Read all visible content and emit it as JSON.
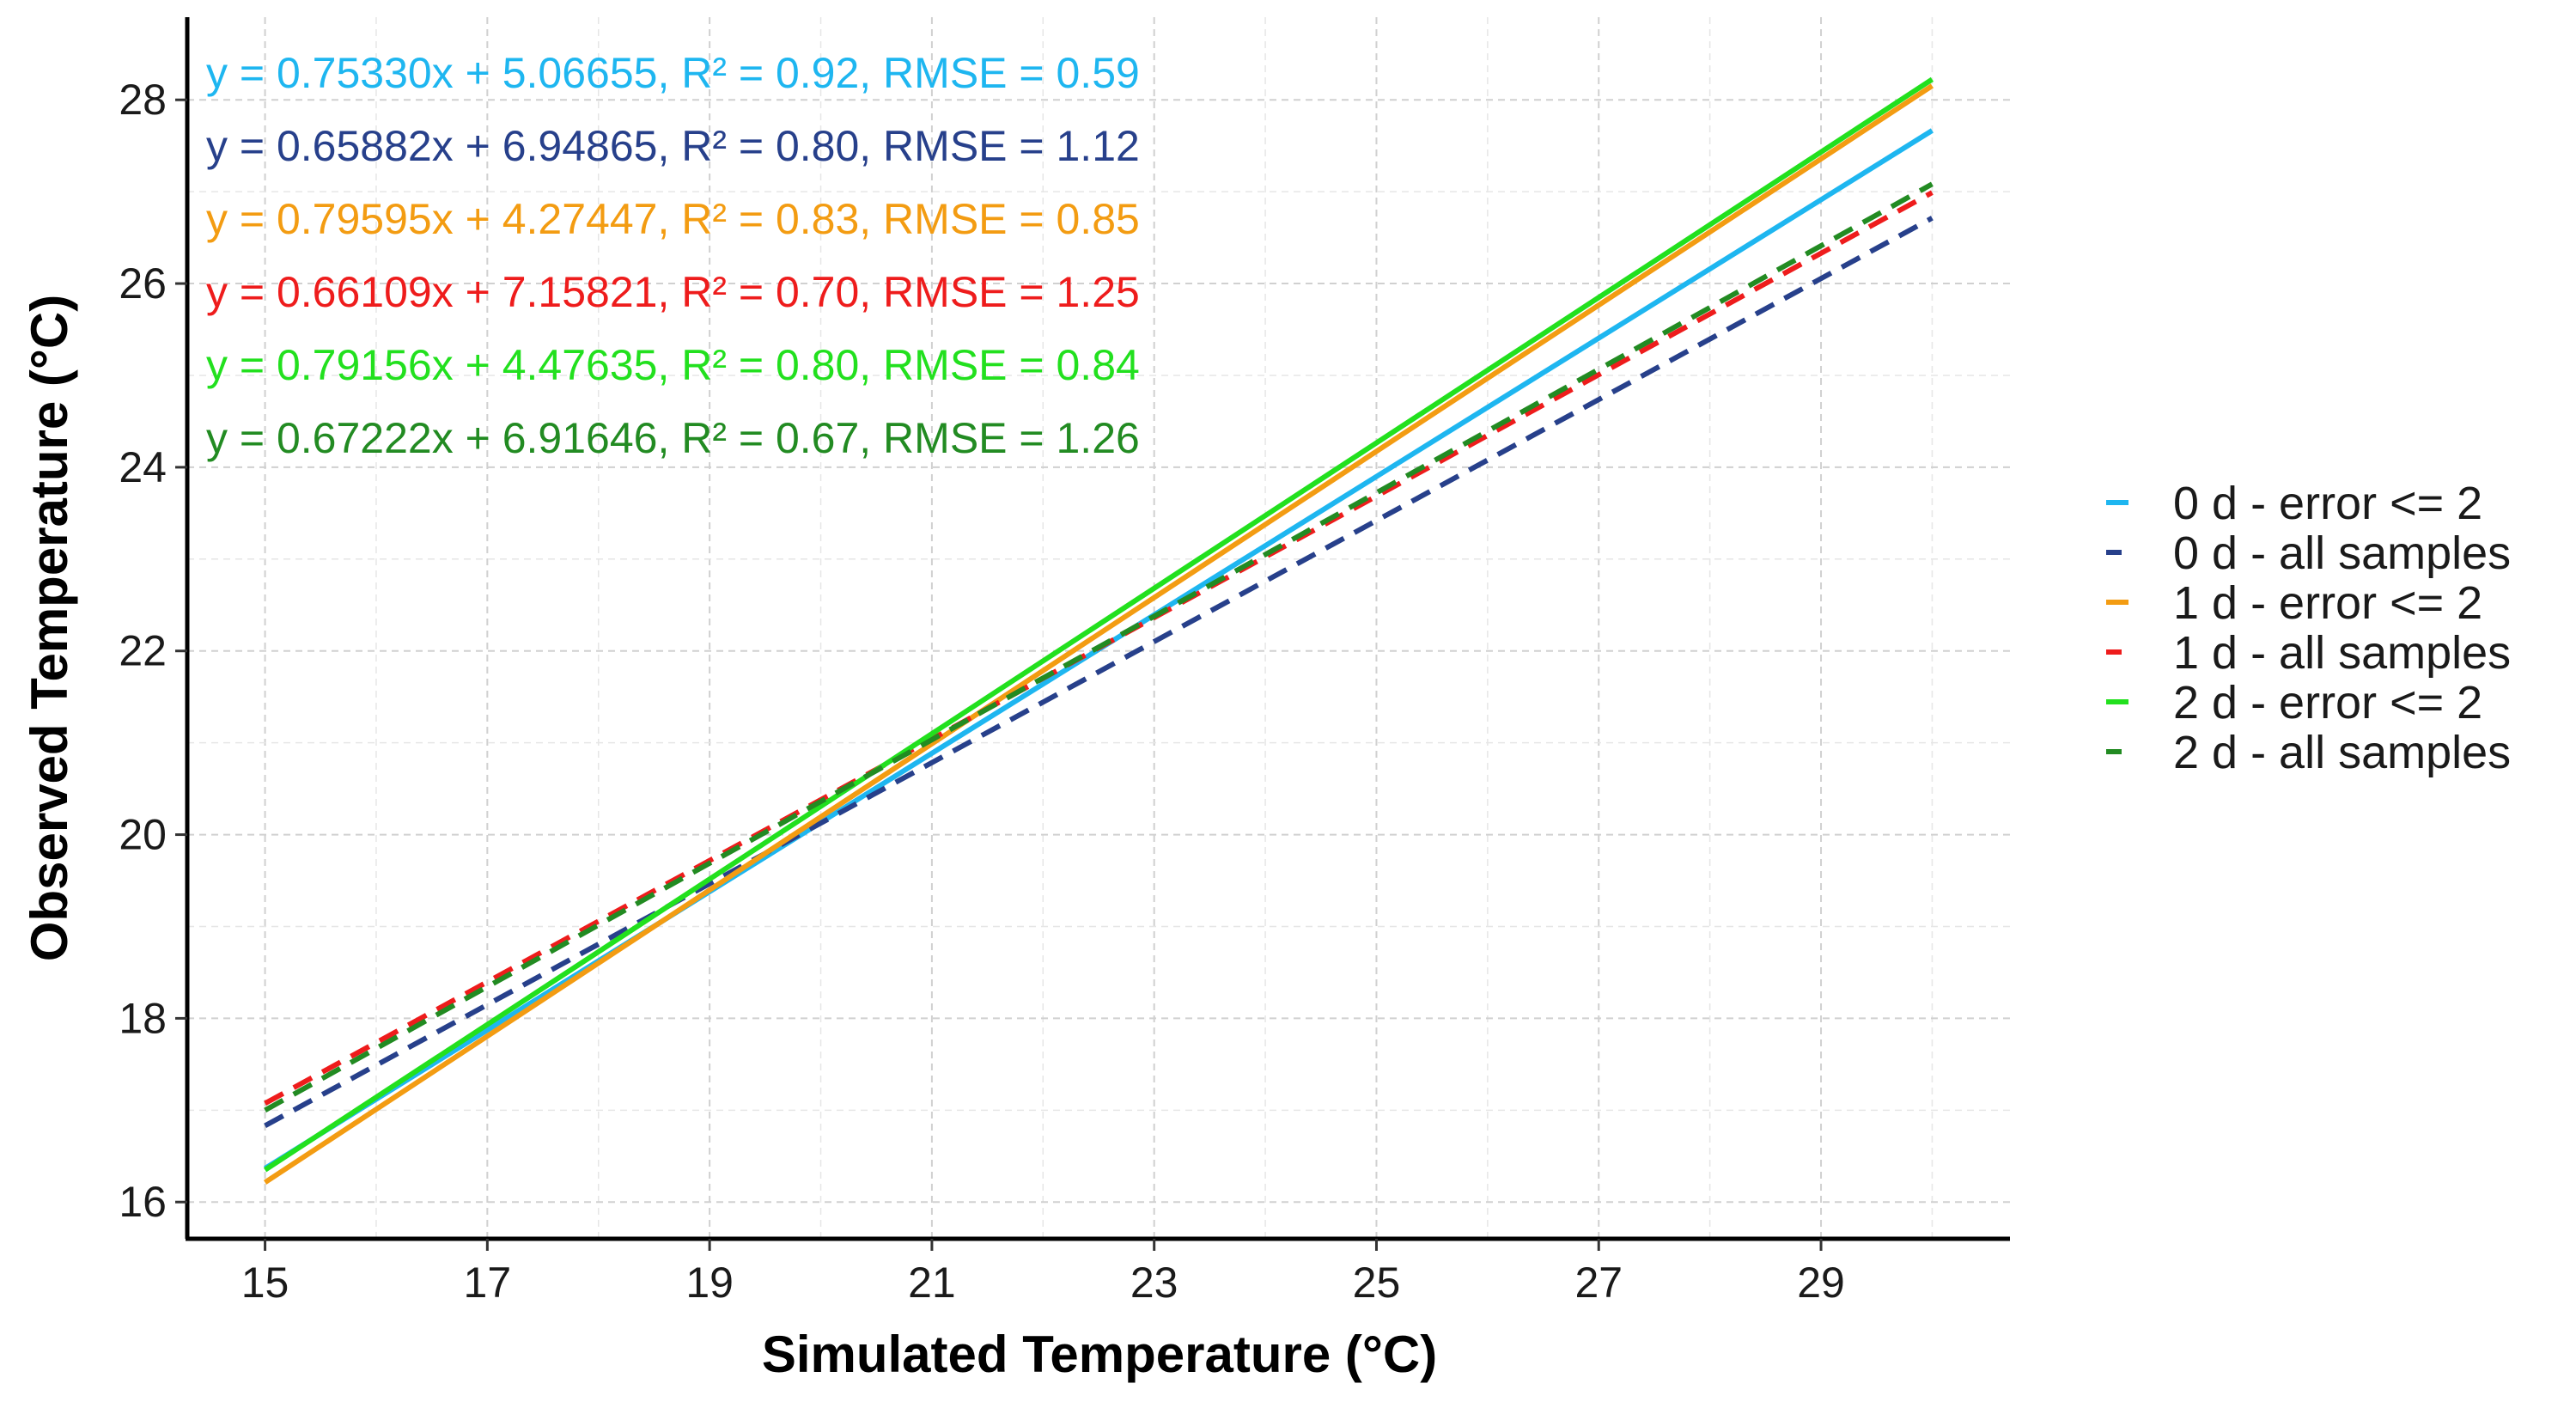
{
  "chart_data": {
    "type": "line",
    "title": "",
    "xlabel": "Simulated Temperature (°C)",
    "ylabel": "Observed Temperature  (°C)",
    "xlim": [
      14.3,
      30.7
    ],
    "ylim": [
      15.6,
      28.9
    ],
    "xticks": [
      15,
      17,
      19,
      21,
      23,
      25,
      27,
      29
    ],
    "yticks": [
      16,
      18,
      20,
      22,
      24,
      26,
      28
    ],
    "xtick_labels": [
      "15",
      "17",
      "19",
      "21",
      "23",
      "25",
      "27",
      "29"
    ],
    "ytick_labels": [
      "16",
      "18",
      "20",
      "22",
      "24",
      "26",
      "28"
    ],
    "grid": true,
    "legend_position": "right",
    "x_range": [
      15,
      30
    ],
    "series": [
      {
        "name": "0 d - error <= 2",
        "slope": 0.7533,
        "intercept": 5.06655,
        "r2": 0.92,
        "rmse": 0.59,
        "dashed": false,
        "color": "#1EB6F0",
        "equation": "y = 0.75330x + 5.06655, R² = 0.92, RMSE = 0.59"
      },
      {
        "name": "0 d - all samples",
        "slope": 0.65882,
        "intercept": 6.94865,
        "r2": 0.8,
        "rmse": 1.12,
        "dashed": true,
        "color": "#27408B",
        "equation": "y = 0.65882x + 6.94865, R² = 0.80, RMSE = 1.12"
      },
      {
        "name": "1 d - error <= 2",
        "slope": 0.79595,
        "intercept": 4.27447,
        "r2": 0.83,
        "rmse": 0.85,
        "dashed": false,
        "color": "#F39C12",
        "equation": "y = 0.79595x + 4.27447, R² = 0.83, RMSE = 0.85"
      },
      {
        "name": "1 d - all samples",
        "slope": 0.66109,
        "intercept": 7.15821,
        "r2": 0.7,
        "rmse": 1.25,
        "dashed": true,
        "color": "#EE1C1C",
        "equation": "y = 0.66109x + 7.15821, R² = 0.70, RMSE = 1.25"
      },
      {
        "name": "2 d - error <= 2",
        "slope": 0.79156,
        "intercept": 4.47635,
        "r2": 0.8,
        "rmse": 0.84,
        "dashed": false,
        "color": "#22E01E",
        "equation": "y = 0.79156x + 4.47635, R² = 0.80, RMSE = 0.84"
      },
      {
        "name": "2 d - all samples",
        "slope": 0.67222,
        "intercept": 6.91646,
        "r2": 0.67,
        "rmse": 1.26,
        "dashed": true,
        "color": "#228B22",
        "equation": "y = 0.67222x + 6.91646, R² = 0.67, RMSE = 1.26"
      }
    ]
  }
}
